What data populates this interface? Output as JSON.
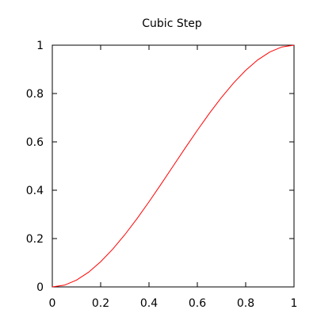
{
  "chart_data": {
    "type": "line",
    "title": "Cubic Step",
    "xlabel": "",
    "ylabel": "",
    "xlim": [
      0,
      1
    ],
    "ylim": [
      0,
      1
    ],
    "x_ticks": [
      0,
      0.2,
      0.4,
      0.6,
      0.8,
      1
    ],
    "y_ticks": [
      0,
      0.2,
      0.4,
      0.6,
      0.8,
      1
    ],
    "x_tick_labels": [
      "0",
      "0.2",
      "0.4",
      "0.6",
      "0.8",
      "1"
    ],
    "y_tick_labels": [
      "0",
      "0.2",
      "0.4",
      "0.6",
      "0.8",
      "1"
    ],
    "grid": false,
    "series": [
      {
        "color": "#ff0000",
        "x": [
          0,
          0.05,
          0.1,
          0.15,
          0.2,
          0.25,
          0.3,
          0.35,
          0.4,
          0.45,
          0.5,
          0.55,
          0.6,
          0.65,
          0.7,
          0.75,
          0.8,
          0.85,
          0.9,
          0.95,
          1
        ],
        "y": [
          0,
          0.00725,
          0.028,
          0.06075,
          0.104,
          0.15625,
          0.216,
          0.28175,
          0.352,
          0.42525,
          0.5,
          0.57475,
          0.648,
          0.71825,
          0.784,
          0.84375,
          0.896,
          0.93925,
          0.972,
          0.99275,
          1
        ]
      }
    ]
  }
}
